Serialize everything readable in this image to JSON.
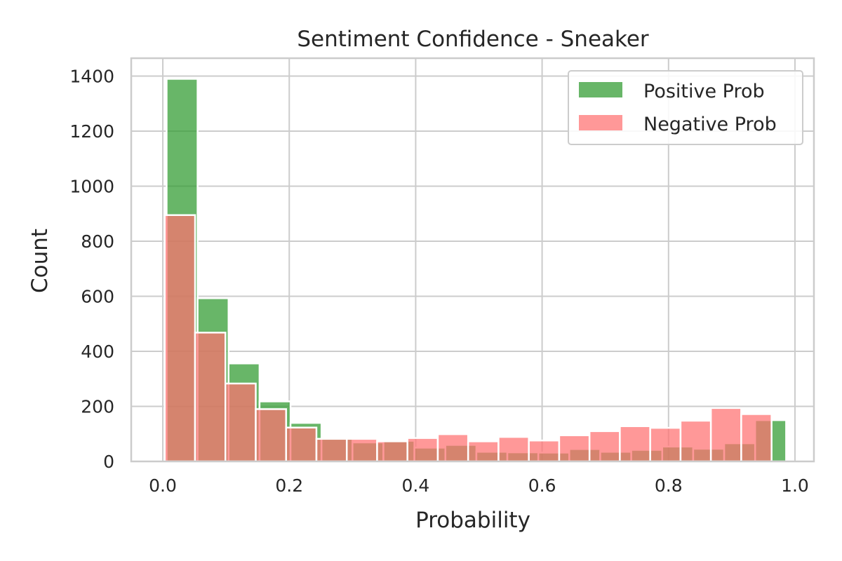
{
  "chart_data": {
    "type": "histogram",
    "title": "Sentiment Confidence - Sneaker",
    "xlabel": "Probability",
    "ylabel": "Count",
    "xlim": [
      -0.05,
      1.03
    ],
    "ylim": [
      0,
      1465
    ],
    "xticks": [
      0.0,
      0.2,
      0.4,
      0.6,
      0.8,
      1.0
    ],
    "xtick_labels": [
      "0.0",
      "0.2",
      "0.4",
      "0.6",
      "0.8",
      "1.0"
    ],
    "yticks": [
      0,
      200,
      400,
      600,
      800,
      1000,
      1200,
      1400
    ],
    "ytick_labels": [
      "0",
      "200",
      "400",
      "600",
      "800",
      "1000",
      "1200",
      "1400"
    ],
    "grid": true,
    "legend_position": "top-right",
    "series": [
      {
        "name": "Positive Prob",
        "color": "#2e9a2e",
        "opacity": 0.72,
        "bin_edges": [
          0.006,
          0.055,
          0.104,
          0.153,
          0.202,
          0.251,
          0.3,
          0.349,
          0.398,
          0.447,
          0.496,
          0.545,
          0.594,
          0.643,
          0.692,
          0.741,
          0.79,
          0.839,
          0.888,
          0.937,
          0.986
        ],
        "counts": [
          1390,
          593,
          356,
          218,
          140,
          83,
          69,
          75,
          50,
          60,
          35,
          33,
          32,
          45,
          35,
          42,
          54,
          46,
          66,
          150
        ]
      },
      {
        "name": "Negative Prob",
        "color": "#ff7070",
        "opacity": 0.72,
        "bin_edges": [
          0.003,
          0.051,
          0.099,
          0.147,
          0.195,
          0.243,
          0.291,
          0.339,
          0.387,
          0.435,
          0.483,
          0.531,
          0.579,
          0.627,
          0.675,
          0.723,
          0.771,
          0.819,
          0.867,
          0.915,
          0.963
        ],
        "counts": [
          895,
          468,
          283,
          190,
          123,
          82,
          82,
          73,
          85,
          99,
          73,
          89,
          76,
          95,
          110,
          128,
          122,
          148,
          194,
          172
        ]
      }
    ]
  }
}
